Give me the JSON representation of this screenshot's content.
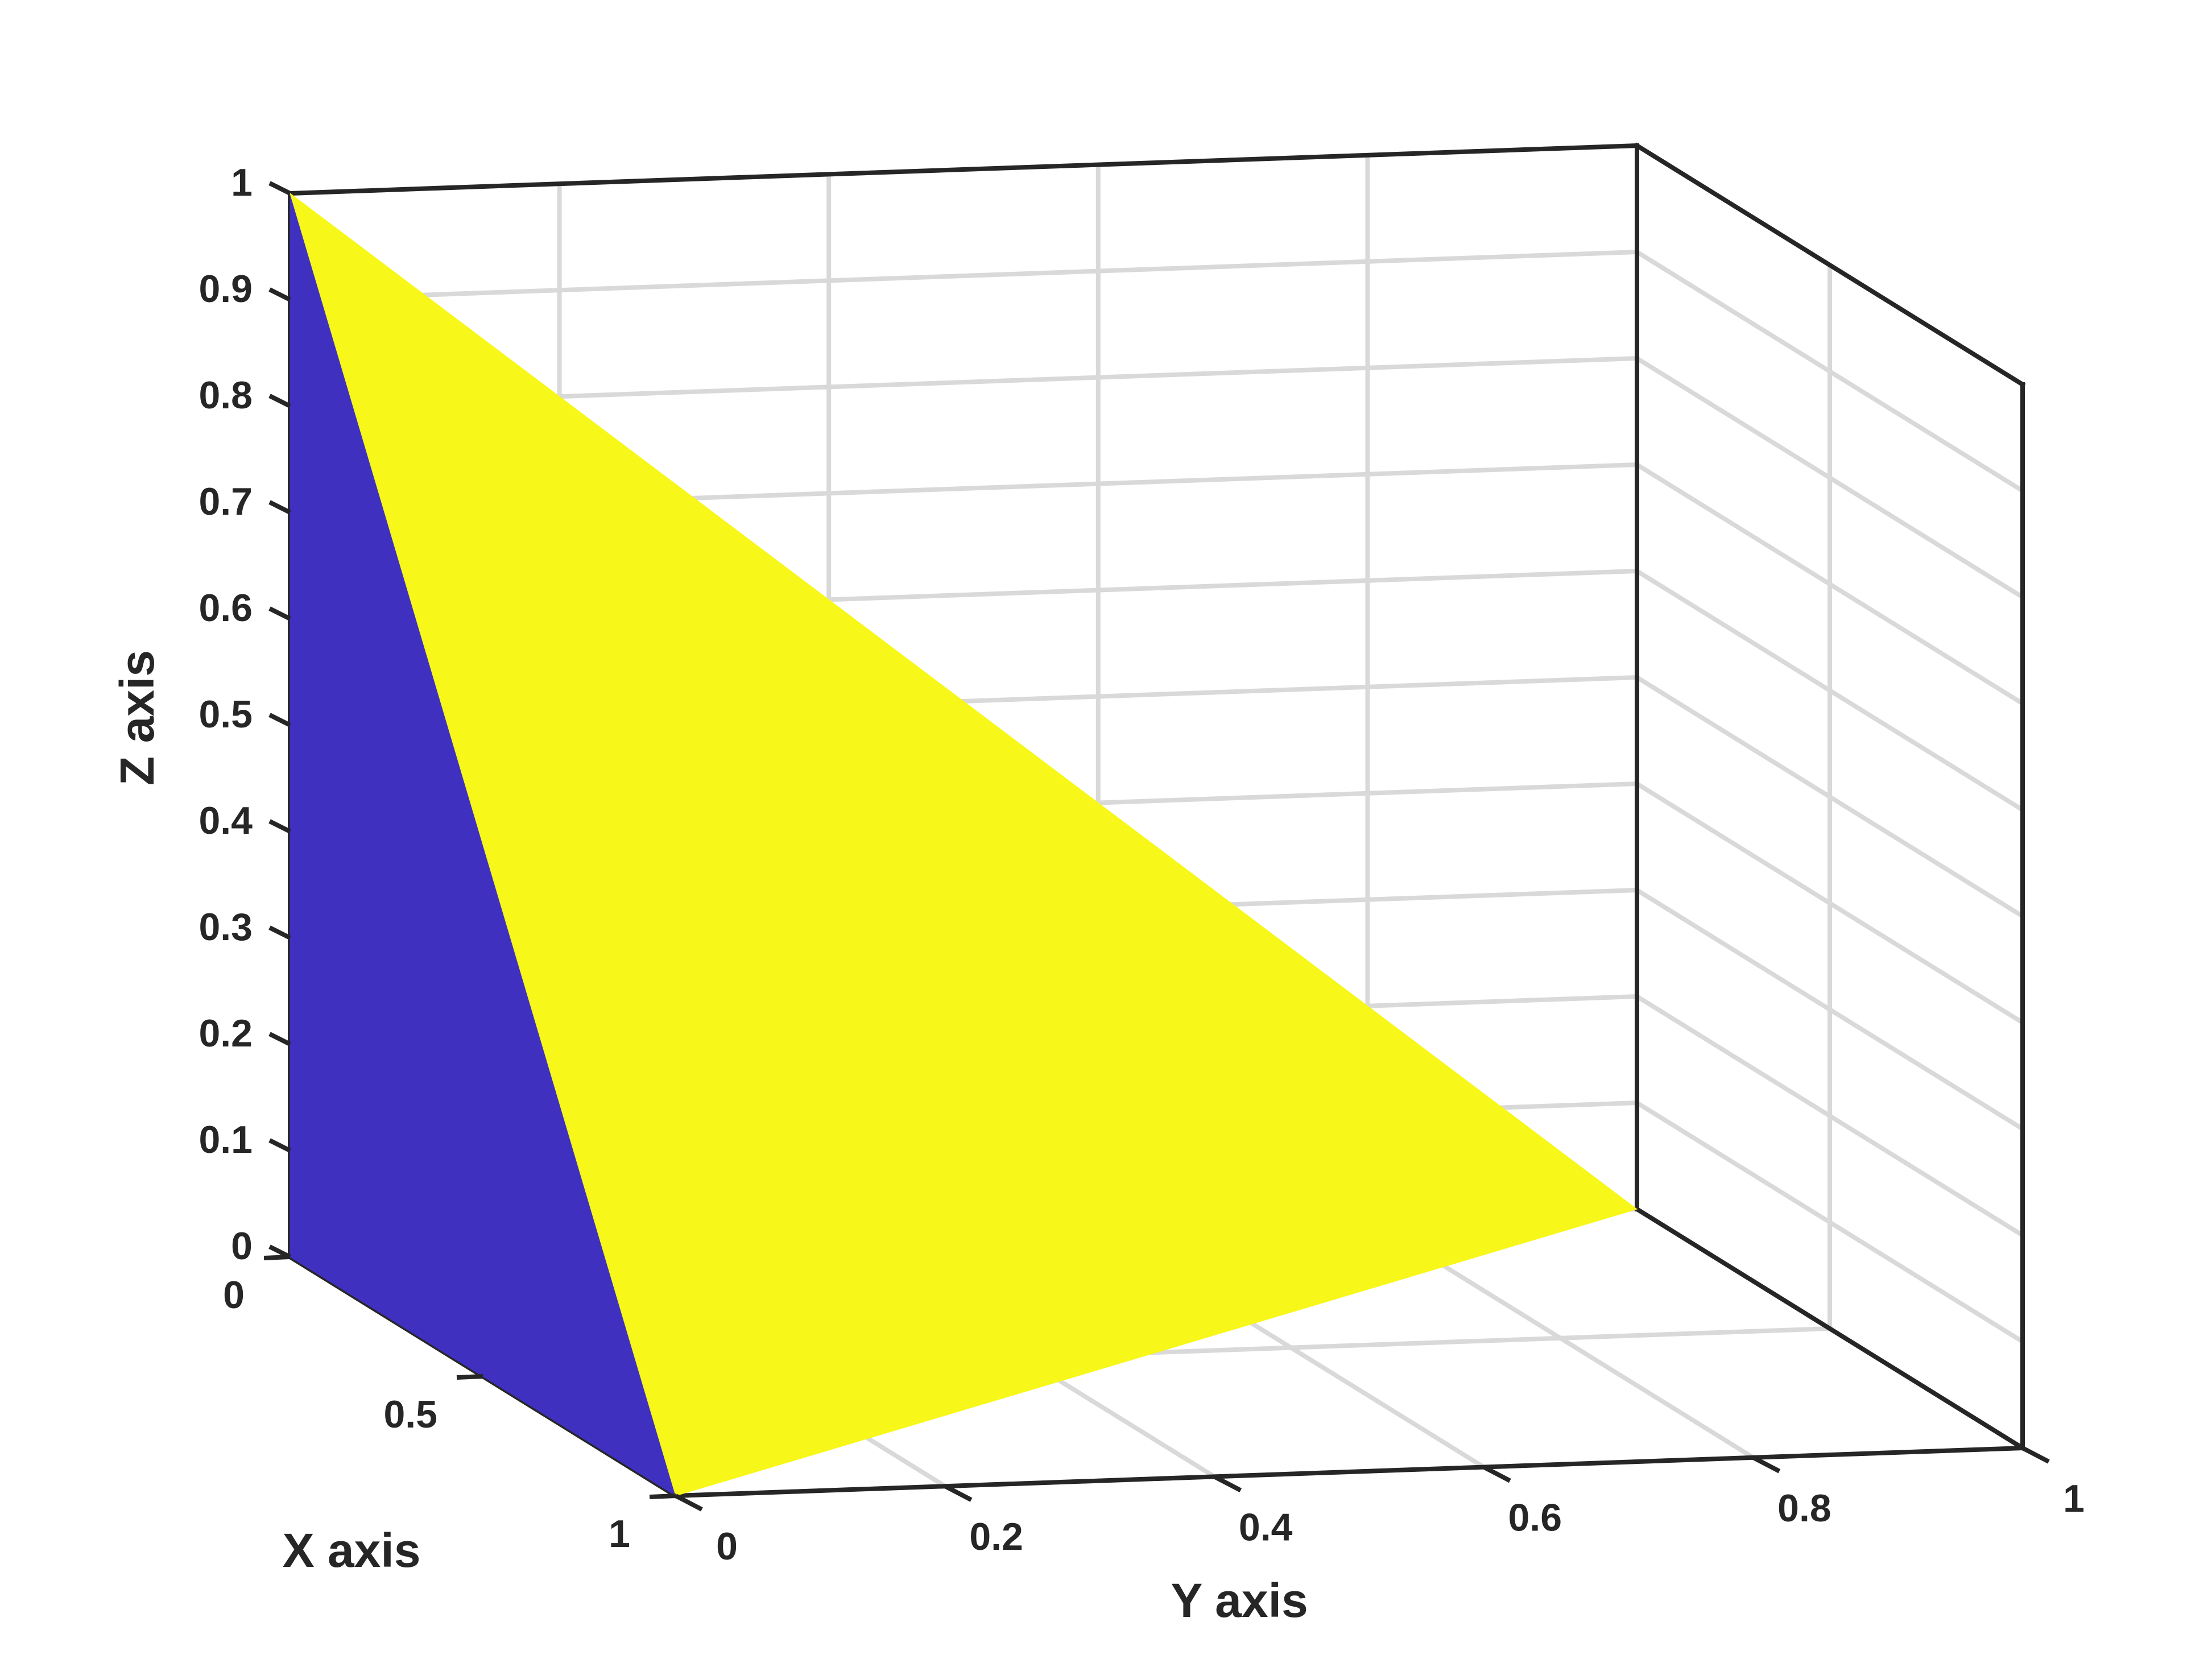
{
  "chart_data": {
    "type": "surface3d",
    "xlabel": "X axis",
    "ylabel": "Y axis",
    "zlabel": "Z axis",
    "xlim": [
      0,
      1
    ],
    "ylim": [
      0,
      1
    ],
    "zlim": [
      0,
      1
    ],
    "x_ticks": [
      "0",
      "0.5",
      "1"
    ],
    "y_ticks": [
      "0",
      "0.2",
      "0.4",
      "0.6",
      "0.8",
      "1"
    ],
    "z_ticks": [
      "0",
      "0.1",
      "0.2",
      "0.3",
      "0.4",
      "0.5",
      "0.6",
      "0.7",
      "0.8",
      "0.9",
      "1"
    ],
    "grid": true,
    "box": true,
    "faces": [
      {
        "color": "#4030bf",
        "vertices": [
          [
            0,
            0,
            0
          ],
          [
            1,
            0,
            0
          ],
          [
            0,
            0,
            1
          ]
        ]
      },
      {
        "color": "#f7f719",
        "vertices": [
          [
            1,
            0,
            0
          ],
          [
            0,
            1,
            0
          ],
          [
            0,
            0,
            1
          ]
        ]
      }
    ]
  }
}
